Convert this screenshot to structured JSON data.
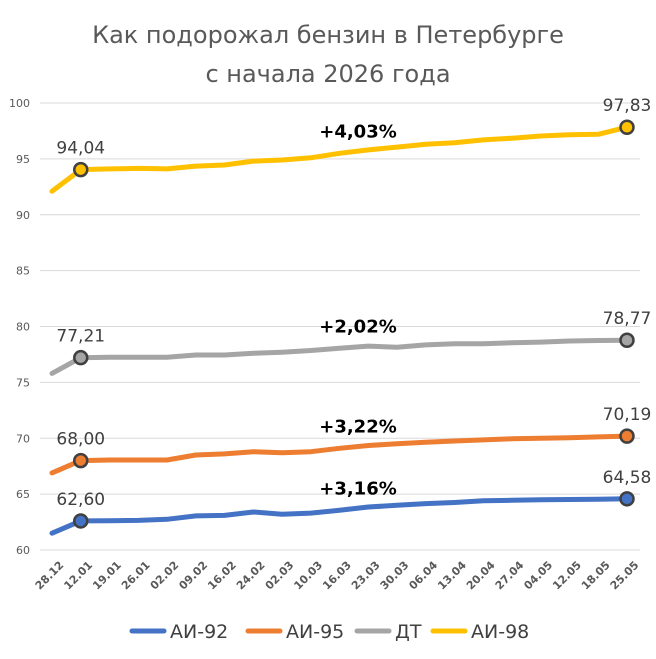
{
  "chart_data": {
    "type": "line",
    "title": "Как подорожал бензин в Петербурге",
    "subtitle": "с начала 2026 года",
    "xlabel": "",
    "ylabel": "",
    "ylim": [
      60,
      100
    ],
    "y_ticks": [
      60,
      65,
      70,
      75,
      80,
      85,
      90,
      95,
      100
    ],
    "grid": true,
    "legend_position": "bottom",
    "categories": [
      "28.12",
      "12.01",
      "19.01",
      "26.01",
      "02.02",
      "09.02",
      "16.02",
      "24.02",
      "02.03",
      "10.03",
      "16.03",
      "23.03",
      "30.03",
      "06.04",
      "13.04",
      "20.04",
      "27.04",
      "04.05",
      "12.05",
      "18.05",
      "25.05"
    ],
    "series": [
      {
        "name": "АИ-92",
        "color": "#4472C4",
        "values": [
          61.5,
          62.6,
          62.62,
          62.65,
          62.75,
          63.05,
          63.1,
          63.4,
          63.2,
          63.3,
          63.55,
          63.85,
          64.0,
          64.15,
          64.25,
          64.4,
          64.45,
          64.5,
          64.52,
          64.55,
          64.58
        ],
        "start_label": "62,60",
        "end_label": "64,58",
        "change_label": "+3,16%"
      },
      {
        "name": "АИ-95",
        "color": "#ED7D31",
        "values": [
          66.9,
          68.0,
          68.05,
          68.05,
          68.05,
          68.5,
          68.6,
          68.8,
          68.7,
          68.8,
          69.1,
          69.35,
          69.5,
          69.65,
          69.75,
          69.85,
          69.95,
          70.0,
          70.05,
          70.12,
          70.19
        ],
        "start_label": "68,00",
        "end_label": "70,19",
        "change_label": "+3,22%"
      },
      {
        "name": "ДТ",
        "color": "#A5A5A5",
        "values": [
          75.8,
          77.21,
          77.25,
          77.25,
          77.25,
          77.45,
          77.45,
          77.6,
          77.7,
          77.85,
          78.05,
          78.25,
          78.15,
          78.35,
          78.45,
          78.45,
          78.55,
          78.6,
          78.7,
          78.75,
          78.77
        ],
        "start_label": "77,21",
        "end_label": "78,77",
        "change_label": "+2,02%"
      },
      {
        "name": "АИ-98",
        "color": "#FFC000",
        "values": [
          92.1,
          94.04,
          94.1,
          94.15,
          94.1,
          94.35,
          94.45,
          94.8,
          94.9,
          95.1,
          95.5,
          95.8,
          96.05,
          96.3,
          96.45,
          96.7,
          96.85,
          97.05,
          97.15,
          97.2,
          97.83
        ],
        "start_label": "94,04",
        "end_label": "97,83",
        "change_label": "+4,03%"
      }
    ]
  }
}
